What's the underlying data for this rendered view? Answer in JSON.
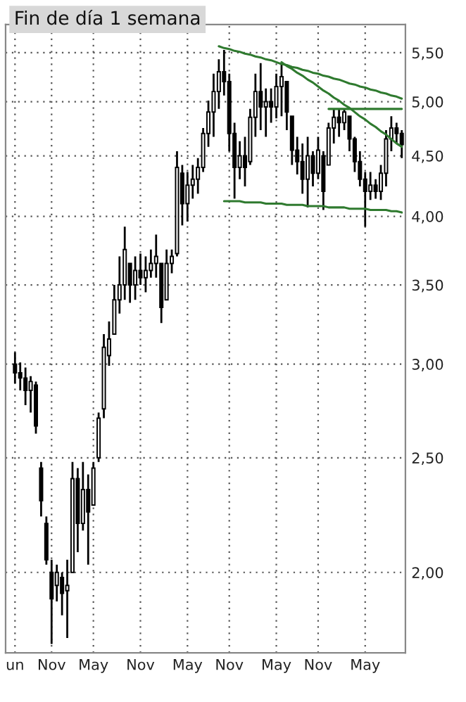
{
  "chart_data": {
    "type": "candlestick",
    "title": "Fin de día 1 semana",
    "color": "#000000",
    "categories": [
      "un",
      null,
      null,
      null,
      null,
      null,
      null,
      "Nov",
      null,
      null,
      null,
      null,
      null,
      null,
      null,
      "May",
      null,
      null,
      null,
      null,
      null,
      null,
      null,
      null,
      "Nov",
      null,
      null,
      null,
      null,
      null,
      null,
      null,
      null,
      "May",
      null,
      null,
      null,
      null,
      null,
      null,
      null,
      "Nov",
      null,
      null,
      null,
      null,
      null,
      null,
      null,
      null,
      "May",
      null,
      null,
      null,
      null,
      null,
      null,
      null,
      "Nov",
      null,
      null,
      null,
      null,
      null,
      null,
      null,
      null,
      "May",
      null,
      null,
      null,
      null,
      null,
      null,
      null
    ],
    "ohlc": [
      [
        3.0,
        3.07,
        2.89,
        2.95
      ],
      [
        2.95,
        3.01,
        2.85,
        2.92
      ],
      [
        2.92,
        2.98,
        2.77,
        2.85
      ],
      [
        2.85,
        2.93,
        2.73,
        2.9
      ],
      [
        2.88,
        2.9,
        2.62,
        2.66
      ],
      [
        2.45,
        2.48,
        2.23,
        2.3
      ],
      [
        2.2,
        2.23,
        2.03,
        2.05
      ],
      [
        2.0,
        2.05,
        1.74,
        1.9
      ],
      [
        1.95,
        2.03,
        1.89,
        2.0
      ],
      [
        1.98,
        2.0,
        1.84,
        1.92
      ],
      [
        1.93,
        2.05,
        1.76,
        1.95
      ],
      [
        2.0,
        2.48,
        2.0,
        2.4
      ],
      [
        2.4,
        2.45,
        2.08,
        2.2
      ],
      [
        2.2,
        2.48,
        2.17,
        2.35
      ],
      [
        2.35,
        2.42,
        2.03,
        2.25
      ],
      [
        2.28,
        2.48,
        2.28,
        2.45
      ],
      [
        2.5,
        2.73,
        2.48,
        2.7
      ],
      [
        2.75,
        3.18,
        2.7,
        3.1
      ],
      [
        3.05,
        3.26,
        2.99,
        3.15
      ],
      [
        3.18,
        3.5,
        3.18,
        3.4
      ],
      [
        3.4,
        3.7,
        3.31,
        3.5
      ],
      [
        3.5,
        3.92,
        3.4,
        3.75
      ],
      [
        3.65,
        3.65,
        3.38,
        3.5
      ],
      [
        3.5,
        3.7,
        3.4,
        3.6
      ],
      [
        3.6,
        3.72,
        3.5,
        3.55
      ],
      [
        3.55,
        3.7,
        3.45,
        3.6
      ],
      [
        3.6,
        3.75,
        3.55,
        3.65
      ],
      [
        3.65,
        3.86,
        3.55,
        3.7
      ],
      [
        3.65,
        3.65,
        3.25,
        3.35
      ],
      [
        3.4,
        3.75,
        3.4,
        3.65
      ],
      [
        3.65,
        3.75,
        3.58,
        3.7
      ],
      [
        3.72,
        4.54,
        3.7,
        4.4
      ],
      [
        4.35,
        4.42,
        3.93,
        4.1
      ],
      [
        4.1,
        4.36,
        3.96,
        4.25
      ],
      [
        4.25,
        4.42,
        4.14,
        4.3
      ],
      [
        4.3,
        4.48,
        4.18,
        4.4
      ],
      [
        4.4,
        4.75,
        4.36,
        4.7
      ],
      [
        4.7,
        5.01,
        4.58,
        4.9
      ],
      [
        4.9,
        5.28,
        4.67,
        5.1
      ],
      [
        5.1,
        5.43,
        4.93,
        5.3
      ],
      [
        5.3,
        5.53,
        5.06,
        5.2
      ],
      [
        5.2,
        5.28,
        4.54,
        4.7
      ],
      [
        4.7,
        4.8,
        4.14,
        4.4
      ],
      [
        4.4,
        4.63,
        4.3,
        4.5
      ],
      [
        4.5,
        4.67,
        4.24,
        4.4
      ],
      [
        4.45,
        4.93,
        4.42,
        4.85
      ],
      [
        4.85,
        5.28,
        4.67,
        5.1
      ],
      [
        5.1,
        5.39,
        4.73,
        4.95
      ],
      [
        4.95,
        5.13,
        4.67,
        5.0
      ],
      [
        5.0,
        5.13,
        4.8,
        4.95
      ],
      [
        4.95,
        5.28,
        4.84,
        5.15
      ],
      [
        5.15,
        5.39,
        4.86,
        5.25
      ],
      [
        5.2,
        5.2,
        4.73,
        4.9
      ],
      [
        4.86,
        4.86,
        4.42,
        4.55
      ],
      [
        4.55,
        4.67,
        4.34,
        4.45
      ],
      [
        4.45,
        4.61,
        4.18,
        4.3
      ],
      [
        4.3,
        4.67,
        4.07,
        4.5
      ],
      [
        4.5,
        4.54,
        4.24,
        4.35
      ],
      [
        4.35,
        4.67,
        4.3,
        4.55
      ],
      [
        4.5,
        4.54,
        4.05,
        4.2
      ],
      [
        4.42,
        4.8,
        4.42,
        4.75
      ],
      [
        4.75,
        4.93,
        4.61,
        4.85
      ],
      [
        4.85,
        4.93,
        4.67,
        4.8
      ],
      [
        4.8,
        4.93,
        4.73,
        4.9
      ],
      [
        4.86,
        4.86,
        4.54,
        4.65
      ],
      [
        4.65,
        4.67,
        4.36,
        4.45
      ],
      [
        4.45,
        4.54,
        4.24,
        4.3
      ],
      [
        4.3,
        4.36,
        3.92,
        4.2
      ],
      [
        4.2,
        4.36,
        4.13,
        4.25
      ],
      [
        4.25,
        4.3,
        4.14,
        4.2
      ],
      [
        4.2,
        4.42,
        4.13,
        4.35
      ],
      [
        4.35,
        4.73,
        4.24,
        4.65
      ],
      [
        4.65,
        4.86,
        4.54,
        4.75
      ],
      [
        4.75,
        4.8,
        4.61,
        4.7
      ],
      [
        4.7,
        4.73,
        4.48,
        4.6
      ]
    ],
    "series": [
      {
        "type": "line",
        "color": "#2f7a2f",
        "values": [
          null,
          null,
          null,
          null,
          null,
          null,
          null,
          null,
          null,
          null,
          null,
          null,
          null,
          null,
          null,
          null,
          null,
          null,
          null,
          null,
          null,
          null,
          null,
          null,
          null,
          null,
          null,
          null,
          null,
          null,
          null,
          null,
          null,
          null,
          null,
          null,
          null,
          null,
          null,
          5.57,
          5.55,
          5.54,
          5.52,
          5.51,
          5.49,
          5.48,
          5.46,
          5.45,
          5.43,
          5.42,
          5.4,
          5.38,
          5.37,
          5.35,
          5.34,
          5.32,
          5.31,
          5.29,
          5.28,
          5.26,
          5.25,
          5.23,
          5.22,
          5.2,
          5.18,
          5.17,
          5.15,
          5.14,
          5.12,
          5.11,
          5.09,
          5.08,
          5.06,
          5.05,
          5.03
        ]
      },
      {
        "type": "line",
        "color": "#2f7a2f",
        "values": [
          null,
          null,
          null,
          null,
          null,
          null,
          null,
          null,
          null,
          null,
          null,
          null,
          null,
          null,
          null,
          null,
          null,
          null,
          null,
          null,
          null,
          null,
          null,
          null,
          null,
          null,
          null,
          null,
          null,
          null,
          null,
          null,
          null,
          null,
          null,
          null,
          null,
          null,
          null,
          null,
          null,
          null,
          null,
          null,
          null,
          null,
          null,
          null,
          null,
          null,
          null,
          5.4,
          5.36,
          5.33,
          5.29,
          5.26,
          5.22,
          5.19,
          5.15,
          5.11,
          5.08,
          5.04,
          5.01,
          4.97,
          4.94,
          4.9,
          4.86,
          4.83,
          4.79,
          4.76,
          4.72,
          4.69,
          4.65,
          4.61,
          4.58
        ]
      },
      {
        "type": "line",
        "color": "#2f7a2f",
        "values": [
          null,
          null,
          null,
          null,
          null,
          null,
          null,
          null,
          null,
          null,
          null,
          null,
          null,
          null,
          null,
          null,
          null,
          null,
          null,
          null,
          null,
          null,
          null,
          null,
          null,
          null,
          null,
          null,
          null,
          null,
          null,
          null,
          null,
          null,
          null,
          null,
          null,
          null,
          null,
          null,
          null,
          null,
          null,
          null,
          null,
          null,
          null,
          null,
          null,
          null,
          null,
          null,
          null,
          null,
          null,
          null,
          null,
          null,
          null,
          null,
          4.93,
          4.93,
          4.93,
          4.93,
          4.93,
          4.93,
          4.93,
          4.93,
          4.93,
          4.93,
          4.93,
          4.93,
          4.93,
          4.93,
          4.93
        ]
      },
      {
        "type": "line",
        "color": "#2f7a2f",
        "values": [
          null,
          null,
          null,
          null,
          null,
          null,
          null,
          null,
          null,
          null,
          null,
          null,
          null,
          null,
          null,
          null,
          null,
          null,
          null,
          null,
          null,
          null,
          null,
          null,
          null,
          null,
          null,
          null,
          null,
          null,
          null,
          null,
          null,
          null,
          null,
          null,
          null,
          null,
          null,
          null,
          4.12,
          4.12,
          4.12,
          4.12,
          4.11,
          4.11,
          4.11,
          4.11,
          4.1,
          4.1,
          4.1,
          4.1,
          4.09,
          4.09,
          4.09,
          4.09,
          4.08,
          4.08,
          4.08,
          4.08,
          4.07,
          4.07,
          4.07,
          4.07,
          4.06,
          4.06,
          4.06,
          4.06,
          4.05,
          4.05,
          4.05,
          4.05,
          4.04,
          4.04,
          4.03
        ]
      }
    ],
    "log": "y",
    "ylim": [
      1.71,
      5.81
    ],
    "yticks": [
      {
        "value": 2.0,
        "label": "2,00"
      },
      {
        "value": 2.5,
        "label": "2,50"
      },
      {
        "value": 3.0,
        "label": "3,00"
      },
      {
        "value": 3.5,
        "label": "3,50"
      },
      {
        "value": 4.0,
        "label": "4,00"
      },
      {
        "value": 4.5,
        "label": "4,50"
      },
      {
        "value": 5.0,
        "label": "5,00"
      },
      {
        "value": 5.5,
        "label": "5,50"
      }
    ],
    "grid": true,
    "line_style": "solid"
  }
}
